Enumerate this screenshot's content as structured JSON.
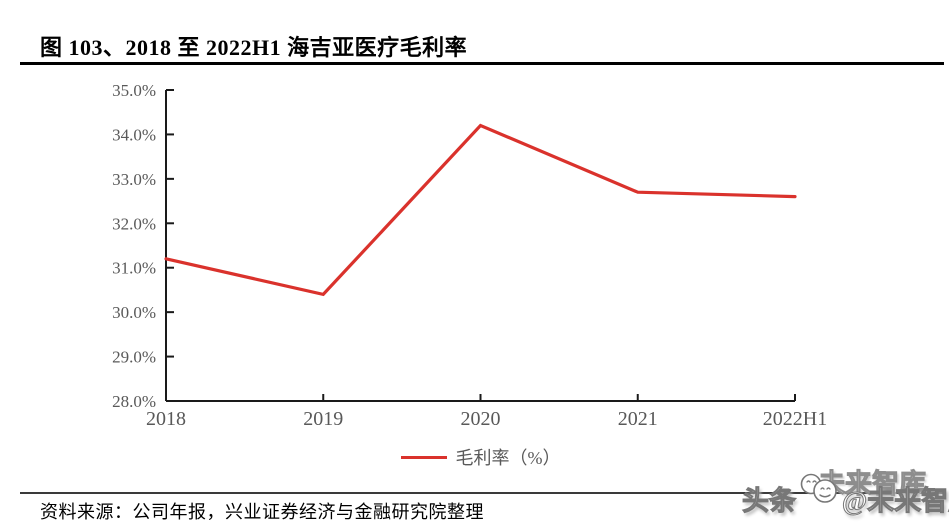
{
  "figure": {
    "title": "图 103、2018 至 2022H1 海吉亚医疗毛利率",
    "source": "资料来源：公司年报，兴业证券经济与金融研究院整理"
  },
  "legend": {
    "label": "毛利率（%）"
  },
  "watermark": {
    "front_left": "头条",
    "front_right": "@未来智库",
    "back": "未来智库",
    "icon": "chat-bubble-smileys-icon"
  },
  "chart_data": {
    "type": "line",
    "title": "2018 至 2022H1 海吉亚医疗毛利率",
    "categories": [
      "2018",
      "2019",
      "2020",
      "2021",
      "2022H1"
    ],
    "series": [
      {
        "name": "毛利率（%）",
        "values": [
          31.2,
          30.4,
          34.2,
          32.7,
          32.6
        ],
        "color": "#da322c"
      }
    ],
    "ylim": [
      28.0,
      35.0
    ],
    "y_tick_step": 1.0,
    "y_tick_labels": [
      "35.0%",
      "34.0%",
      "33.0%",
      "32.0%",
      "31.0%",
      "30.0%",
      "29.0%",
      "28.0%"
    ],
    "xlabel": "",
    "ylabel": "",
    "grid": false,
    "legend_position": "bottom-center",
    "colors": {
      "line": "#da322c",
      "axis": "#1a1a1a",
      "tick_labels": "#595959"
    }
  }
}
